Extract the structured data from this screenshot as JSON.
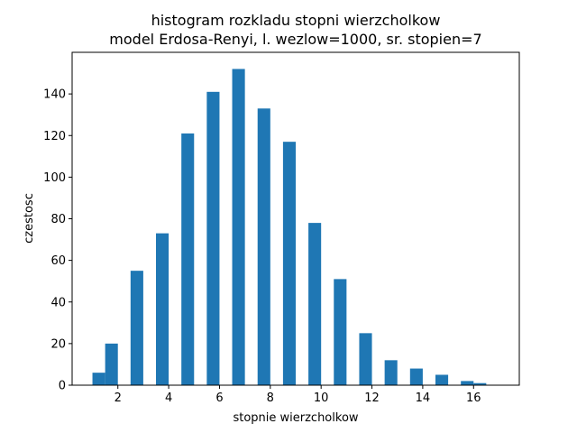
{
  "chart_data": {
    "type": "bar",
    "title": "histogram rozkladu stopni wierzcholkow",
    "subtitle": "model Erdosa-Renyi, l. wezlow=1000, sr. stopien=7",
    "xlabel": "stopnie wierzcholkow",
    "ylabel": "czestosc",
    "bar_color": "#1f77b4",
    "grid": false,
    "legend": "none",
    "xlim": [
      0.2,
      17.8
    ],
    "ylim": [
      0,
      160
    ],
    "bin_width": 0.5,
    "bars": [
      {
        "x0": 1.0,
        "value": 6
      },
      {
        "x0": 1.5,
        "value": 20
      },
      {
        "x0": 2.5,
        "value": 55
      },
      {
        "x0": 3.5,
        "value": 73
      },
      {
        "x0": 4.5,
        "value": 121
      },
      {
        "x0": 5.5,
        "value": 141
      },
      {
        "x0": 6.5,
        "value": 152
      },
      {
        "x0": 7.5,
        "value": 133
      },
      {
        "x0": 8.5,
        "value": 117
      },
      {
        "x0": 9.5,
        "value": 78
      },
      {
        "x0": 10.5,
        "value": 51
      },
      {
        "x0": 11.5,
        "value": 25
      },
      {
        "x0": 12.5,
        "value": 12
      },
      {
        "x0": 13.5,
        "value": 8
      },
      {
        "x0": 14.5,
        "value": 5
      },
      {
        "x0": 15.5,
        "value": 2
      },
      {
        "x0": 16.0,
        "value": 1
      }
    ],
    "x_ticks": [
      2,
      4,
      6,
      8,
      10,
      12,
      14,
      16
    ],
    "y_ticks": [
      0,
      20,
      40,
      60,
      80,
      100,
      120,
      140
    ]
  }
}
